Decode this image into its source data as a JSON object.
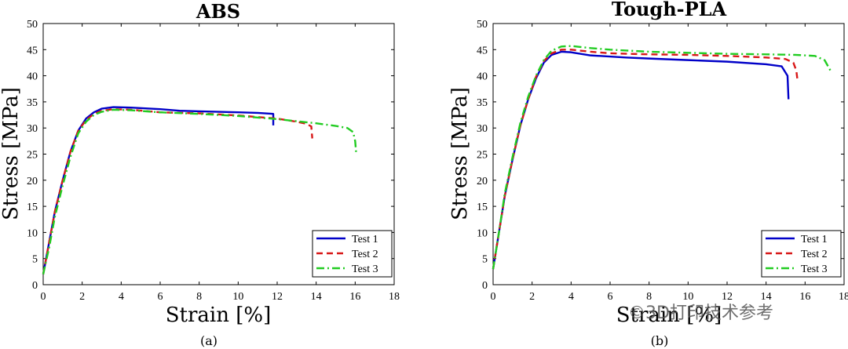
{
  "chart_data": [
    {
      "type": "line",
      "title": "ABS",
      "xlabel": "Strain [%]",
      "ylabel": "Stress [MPa]",
      "xlim": [
        0,
        18
      ],
      "ylim": [
        0,
        50
      ],
      "xticks": [
        0,
        2,
        4,
        6,
        8,
        10,
        12,
        14,
        16,
        18
      ],
      "yticks": [
        0,
        5,
        10,
        15,
        20,
        25,
        30,
        35,
        40,
        45,
        50
      ],
      "caption": "(a)",
      "legend_position": "bottom-right",
      "series": [
        {
          "name": "Test 1",
          "color": "#0000c8",
          "style": "solid",
          "x": [
            0,
            0.3,
            0.6,
            1.0,
            1.4,
            1.8,
            2.2,
            2.6,
            3.0,
            3.6,
            4.5,
            6,
            7,
            8,
            9,
            10,
            11,
            11.8,
            11.8
          ],
          "y": [
            2,
            8,
            14,
            20,
            25.5,
            29.5,
            31.8,
            33,
            33.7,
            34,
            33.9,
            33.6,
            33.3,
            33.2,
            33.1,
            33,
            32.9,
            32.7,
            30.5
          ]
        },
        {
          "name": "Test 2",
          "color": "#d81818",
          "style": "dashed",
          "x": [
            0,
            0.3,
            0.6,
            1.0,
            1.4,
            1.8,
            2.2,
            2.6,
            3.0,
            3.6,
            4.5,
            6,
            8,
            10,
            12,
            13,
            13.5,
            13.75,
            13.8
          ],
          "y": [
            2,
            8,
            14,
            20,
            25.5,
            29.5,
            31.5,
            32.7,
            33.3,
            33.6,
            33.5,
            33.0,
            32.8,
            32.4,
            31.8,
            31.2,
            30.8,
            30.3,
            28
          ]
        },
        {
          "name": "Test 3",
          "color": "#22cc22",
          "style": "dashdot",
          "x": [
            0,
            0.3,
            0.6,
            1.0,
            1.4,
            1.8,
            2.2,
            2.6,
            3.0,
            3.6,
            4.5,
            6,
            8,
            10,
            12,
            14,
            15,
            15.6,
            15.9,
            16.0,
            16.05
          ],
          "y": [
            2,
            7,
            13,
            19,
            24.5,
            29,
            31.2,
            32.5,
            33.1,
            33.5,
            33.4,
            33.0,
            32.7,
            32.3,
            31.7,
            30.9,
            30.4,
            30.0,
            29.2,
            27.5,
            25.3
          ]
        }
      ]
    },
    {
      "type": "line",
      "title": "Tough-PLA",
      "xlabel": "Strain [%]",
      "ylabel": "Stress [MPa]",
      "xlim": [
        0,
        18
      ],
      "ylim": [
        0,
        50
      ],
      "xticks": [
        0,
        2,
        4,
        6,
        8,
        10,
        12,
        14,
        16,
        18
      ],
      "yticks": [
        0,
        5,
        10,
        15,
        20,
        25,
        30,
        35,
        40,
        45,
        50
      ],
      "caption": "(b)",
      "legend_position": "bottom-right",
      "series": [
        {
          "name": "Test 1",
          "color": "#0000c8",
          "style": "solid",
          "x": [
            0,
            0.3,
            0.6,
            1.0,
            1.4,
            1.8,
            2.2,
            2.6,
            3.0,
            3.5,
            4.0,
            5,
            6.8,
            8,
            10,
            12,
            14,
            14.8,
            15.1,
            15.15
          ],
          "y": [
            3,
            10,
            17,
            24,
            30.5,
            35.5,
            39.5,
            42.5,
            44,
            44.6,
            44.5,
            43.9,
            43.5,
            43.3,
            43.0,
            42.7,
            42.2,
            41.8,
            40,
            35.5
          ]
        },
        {
          "name": "Test 2",
          "color": "#d81818",
          "style": "dashed",
          "x": [
            0,
            0.3,
            0.6,
            1.0,
            1.4,
            1.8,
            2.2,
            2.6,
            3.0,
            3.5,
            4.0,
            5,
            6,
            8,
            10,
            12,
            14,
            15,
            15.4,
            15.55,
            15.6
          ],
          "y": [
            3,
            10,
            17,
            24,
            30.5,
            35.5,
            39.8,
            42.8,
            44.3,
            45,
            45,
            44.6,
            44.3,
            44.1,
            44.0,
            43.8,
            43.5,
            43.2,
            42.5,
            41,
            39.5
          ]
        },
        {
          "name": "Test 3",
          "color": "#22cc22",
          "style": "dashdot",
          "x": [
            0,
            0.3,
            0.6,
            1.0,
            1.4,
            1.8,
            2.2,
            2.6,
            3.0,
            3.5,
            4.0,
            5,
            6,
            8,
            10,
            12,
            14,
            15.5,
            16.5,
            17,
            17.3
          ],
          "y": [
            3,
            10,
            17.5,
            24.5,
            31,
            36,
            40,
            43,
            44.8,
            45.6,
            45.7,
            45.3,
            45.0,
            44.6,
            44.4,
            44.2,
            44.1,
            44.0,
            43.8,
            43,
            41
          ]
        }
      ]
    }
  ],
  "watermark": "©3D打印技术参考"
}
